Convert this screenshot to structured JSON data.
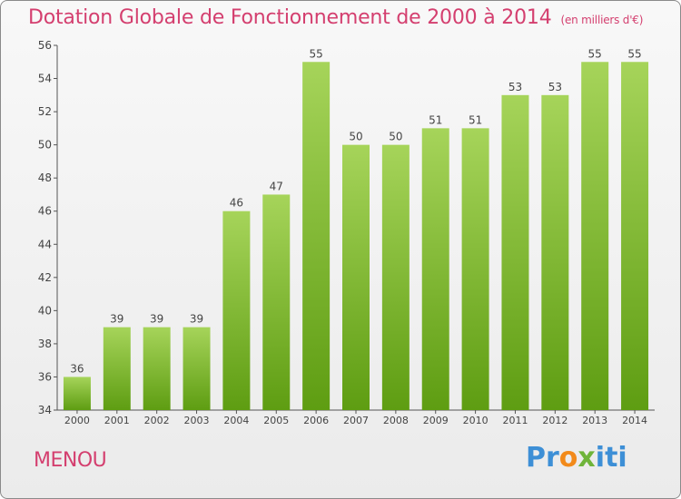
{
  "header": {
    "title": "Dotation Globale de Fonctionnement de 2000 à 2014",
    "subtitle": "(en milliers d'€)"
  },
  "footer": {
    "town": "MENOU",
    "logo": "Proxiti"
  },
  "colors": {
    "title": "#d43f6f",
    "bar_light": "#a6d45a",
    "bar_dark": "#5e9d12",
    "axis": "#444444"
  },
  "chart_data": {
    "type": "bar",
    "title": "Dotation Globale de Fonctionnement de 2000 à 2014",
    "subtitle": "(en milliers d'€)",
    "xlabel": "",
    "ylabel": "",
    "categories": [
      "2000",
      "2001",
      "2002",
      "2003",
      "2004",
      "2005",
      "2006",
      "2007",
      "2008",
      "2009",
      "2010",
      "2011",
      "2012",
      "2013",
      "2014"
    ],
    "values": [
      36,
      39,
      39,
      39,
      46,
      47,
      55,
      50,
      50,
      51,
      51,
      53,
      53,
      55,
      55
    ],
    "ylim": [
      34,
      56
    ],
    "yticks": [
      34,
      36,
      38,
      40,
      42,
      44,
      46,
      48,
      50,
      52,
      54,
      56
    ],
    "grid": false,
    "legend": "none"
  }
}
